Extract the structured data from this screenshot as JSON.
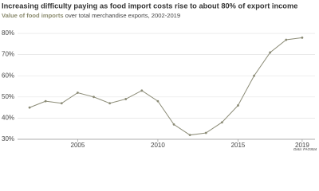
{
  "chart_data": {
    "type": "line",
    "title": "Increasing difficulty paying as food import costs rise to about 80% of export income",
    "subtitle_highlight": "Value of food imports",
    "subtitle_rest": " over total merchandise exports, 2002-2019",
    "source": "Data: FAOStat",
    "x": [
      2002,
      2003,
      2004,
      2005,
      2006,
      2007,
      2008,
      2009,
      2010,
      2011,
      2012,
      2013,
      2014,
      2015,
      2016,
      2017,
      2018,
      2019
    ],
    "series": [
      {
        "name": "Value of food imports",
        "color": "#8b8b76",
        "values": [
          45,
          48,
          47,
          52,
          50,
          47,
          49,
          53,
          48,
          37,
          32,
          33,
          38,
          46,
          60,
          71,
          77,
          78
        ]
      }
    ],
    "xlim": [
      2001.25,
      2019.8
    ],
    "xticks": [
      2005,
      2010,
      2015,
      2019
    ],
    "ylim": [
      30,
      80
    ],
    "yticks": [
      {
        "value": 30,
        "label": "30%"
      },
      {
        "value": 40,
        "label": "40%"
      },
      {
        "value": 50,
        "label": "50%"
      },
      {
        "value": 60,
        "label": "60%"
      },
      {
        "value": 70,
        "label": "70%"
      },
      {
        "value": 80,
        "label": "80%"
      }
    ],
    "grid": true
  }
}
